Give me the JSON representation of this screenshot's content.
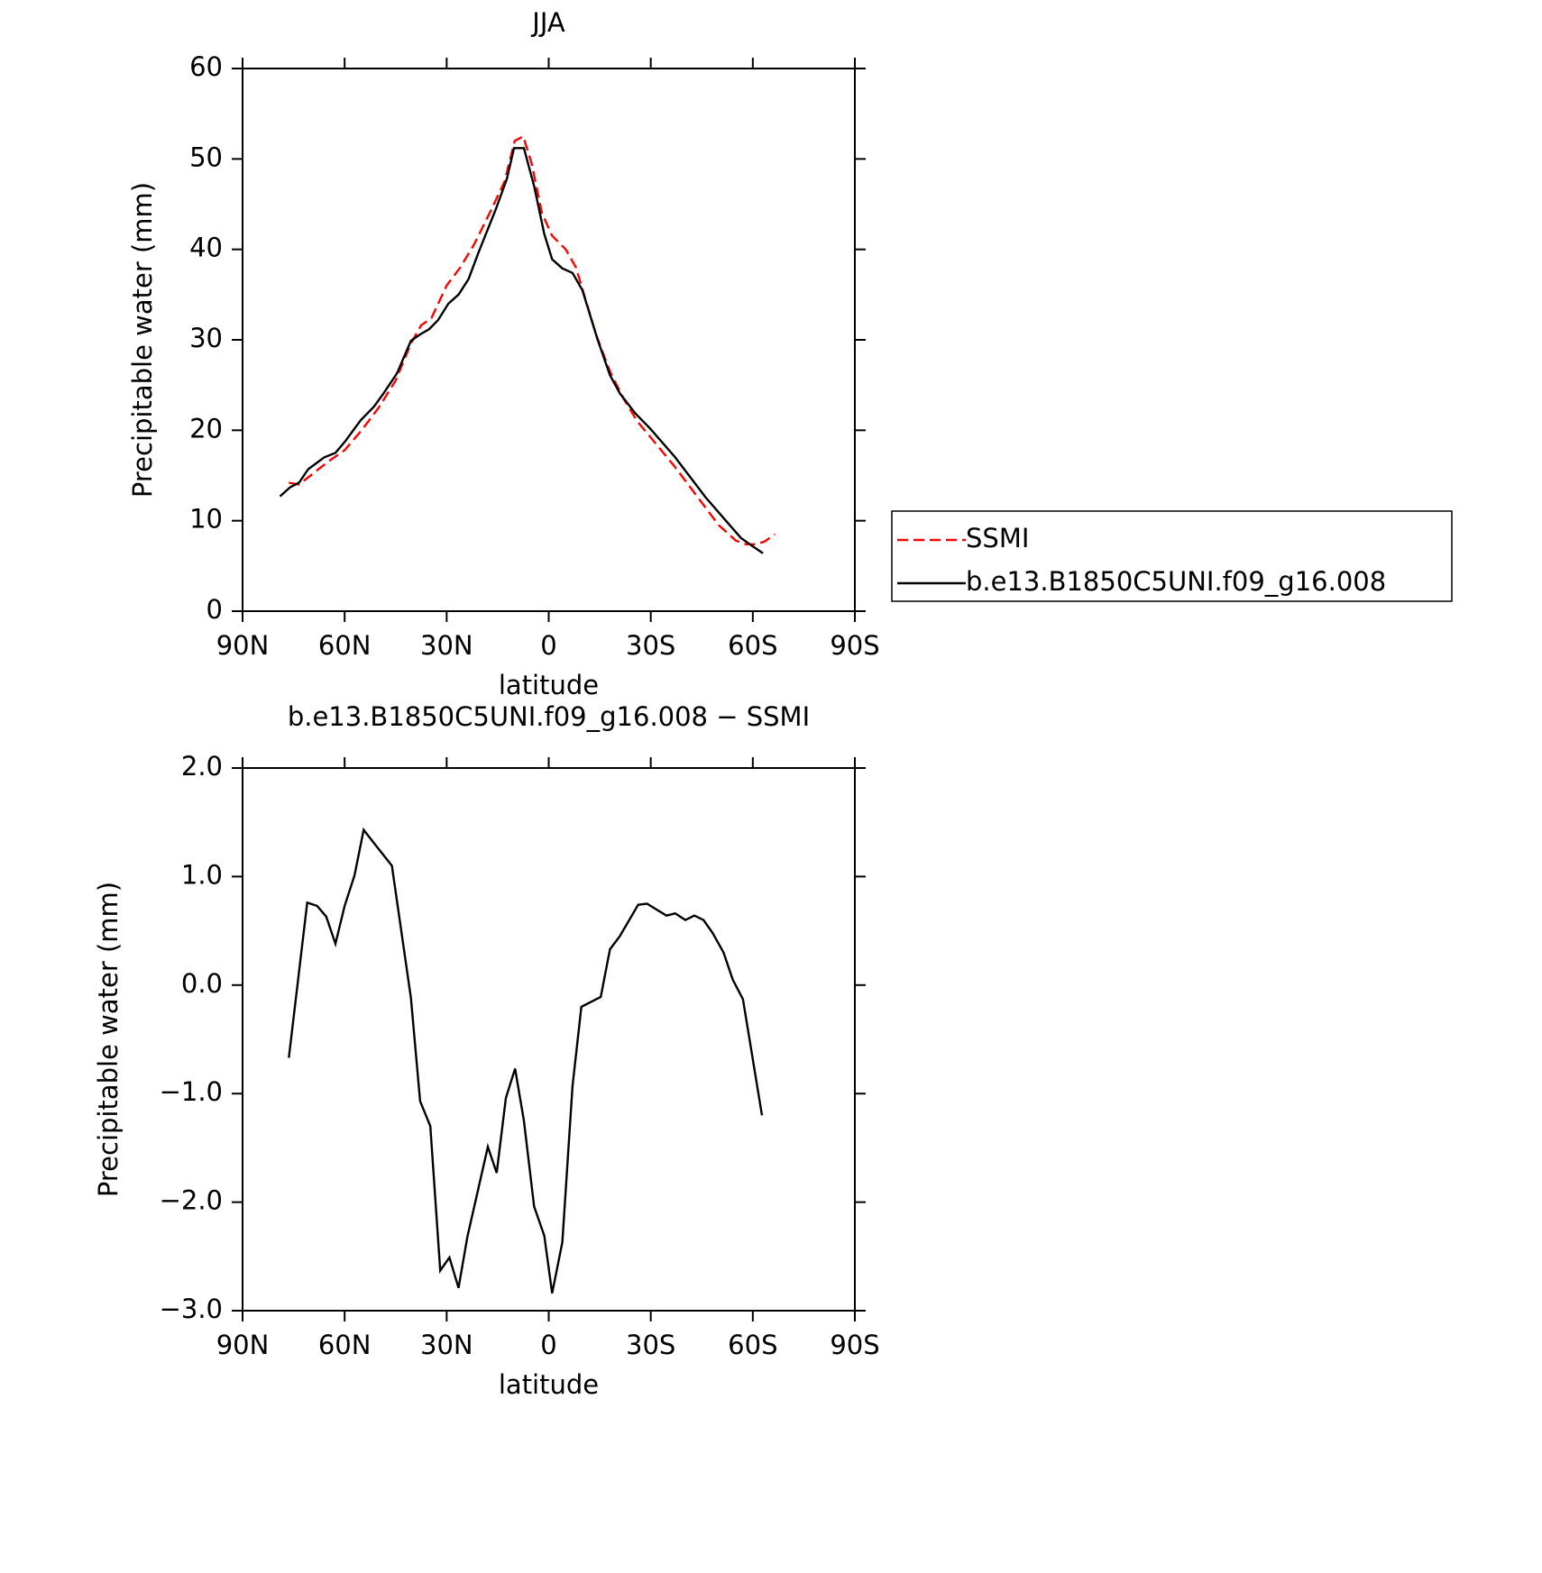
{
  "chart_data": [
    {
      "type": "line",
      "title": "JJA",
      "xlabel": "latitude",
      "ylabel": "Precipitable water (mm)",
      "xlim": [
        90,
        -90
      ],
      "ylim": [
        0,
        60
      ],
      "xticks": [
        {
          "value": 90,
          "label": "90N"
        },
        {
          "value": 60,
          "label": "60N"
        },
        {
          "value": 30,
          "label": "30N"
        },
        0,
        {
          "value": -30,
          "label": "30S"
        },
        {
          "value": -60,
          "label": "60S"
        },
        {
          "value": -90,
          "label": "90S"
        }
      ],
      "yticks": [
        0,
        10,
        20,
        30,
        40,
        50,
        60
      ],
      "legend": "outside-right",
      "series": [
        {
          "name": "SSMI",
          "color": "#ff0000",
          "linestyle": "dashed",
          "x": [
            76.4,
            73.4,
            70,
            65,
            60,
            55,
            50,
            45,
            40.5,
            37.5,
            34.5,
            30,
            26,
            22,
            17,
            13,
            10,
            7.5,
            5,
            2,
            -1,
            -5,
            -8,
            -10,
            -14,
            -18,
            -22,
            -26,
            -30,
            -37,
            -44,
            -50,
            -55,
            -58,
            -61,
            -63.5,
            -66.5
          ],
          "values": [
            14.2,
            14.0,
            15.0,
            16.5,
            17.8,
            20,
            22.5,
            25.5,
            29.6,
            31.6,
            32.4,
            36,
            38,
            40.5,
            44.3,
            47.5,
            52,
            52.5,
            49.5,
            44,
            41.5,
            40,
            38,
            35.5,
            30.5,
            26.5,
            23.5,
            21,
            19.2,
            16,
            12.5,
            9.5,
            7.8,
            7.4,
            7.4,
            7.7,
            8.5
          ]
        },
        {
          "name": "b.e13.B1850C5UNI.f09_g16.008",
          "color": "#000000",
          "linestyle": "solid",
          "x": [
            79,
            76,
            73.4,
            70.7,
            66,
            62.7,
            59.8,
            55.3,
            51.4,
            48.5,
            44.6,
            40.5,
            37.8,
            35.1,
            32.5,
            29.5,
            26.5,
            23.6,
            20.6,
            15.6,
            12.3,
            10.2,
            7.3,
            4.3,
            1.3,
            -1.0,
            -4.0,
            -7.0,
            -9.9,
            -14.4,
            -18.0,
            -20.9,
            -25.4,
            -29.8,
            -37.2,
            -46.1,
            -52.1,
            -56.5,
            -59.5,
            -63.0
          ],
          "values": [
            12.7,
            13.7,
            14.2,
            15.7,
            17.0,
            17.5,
            18.8,
            21.1,
            22.6,
            24.1,
            26.3,
            29.9,
            30.6,
            31.2,
            32.2,
            34.0,
            35.0,
            36.7,
            39.7,
            44.4,
            47.8,
            51.2,
            51.2,
            47.0,
            41.7,
            38.9,
            37.9,
            37.4,
            35.5,
            30.0,
            26.1,
            24.1,
            21.9,
            20.2,
            17.0,
            12.6,
            10.0,
            8.1,
            7.3,
            6.4
          ]
        }
      ]
    },
    {
      "type": "line",
      "title": "b.e13.B1850C5UNI.f09_g16.008 − SSMI",
      "xlabel": "latitude",
      "ylabel": "Precipitable water (mm)",
      "xlim": [
        90,
        -90
      ],
      "ylim": [
        -3,
        2
      ],
      "xticks": [
        {
          "value": 90,
          "label": "90N"
        },
        {
          "value": 60,
          "label": "60N"
        },
        {
          "value": 30,
          "label": "30N"
        },
        0,
        {
          "value": -30,
          "label": "30S"
        },
        {
          "value": -60,
          "label": "60S"
        },
        {
          "value": -90,
          "label": "90S"
        }
      ],
      "yticks": [
        {
          "value": -3,
          "label": "−3.0"
        },
        {
          "value": -2,
          "label": "−2.0"
        },
        {
          "value": -1,
          "label": "−1.0"
        },
        {
          "value": 0,
          "label": "0.0"
        },
        {
          "value": 1,
          "label": "1.0"
        },
        {
          "value": 2,
          "label": "2.0"
        }
      ],
      "series": [
        {
          "color": "#000000",
          "linestyle": "solid",
          "x": [
            76.4,
            71.0,
            68.1,
            65.4,
            62.7,
            60.0,
            57.1,
            54.4,
            51.4,
            46.1,
            40.5,
            37.8,
            34.8,
            31.9,
            29.2,
            26.5,
            23.9,
            17.9,
            15.3,
            12.6,
            9.9,
            7.3,
            4.3,
            1.3,
            -1.0,
            -4.0,
            -7.0,
            -9.6,
            -15.3,
            -18.0,
            -20.9,
            -26.3,
            -28.9,
            -34.6,
            -37.2,
            -40.2,
            -42.8,
            -45.5,
            -48.2,
            -51.4,
            -54.1,
            -57.1,
            -62.7
          ],
          "values": [
            -0.67,
            0.76,
            0.73,
            0.63,
            0.38,
            0.73,
            1.01,
            1.43,
            1.31,
            1.1,
            -0.12,
            -1.07,
            -1.3,
            -2.63,
            -2.51,
            -2.79,
            -2.32,
            -1.49,
            -1.73,
            -1.04,
            -0.77,
            -1.25,
            -2.04,
            -2.31,
            -2.84,
            -2.37,
            -0.93,
            -0.2,
            -0.11,
            0.33,
            0.45,
            0.74,
            0.75,
            0.64,
            0.66,
            0.6,
            0.64,
            0.6,
            0.48,
            0.3,
            0.05,
            -0.13,
            -1.2
          ]
        }
      ]
    }
  ]
}
